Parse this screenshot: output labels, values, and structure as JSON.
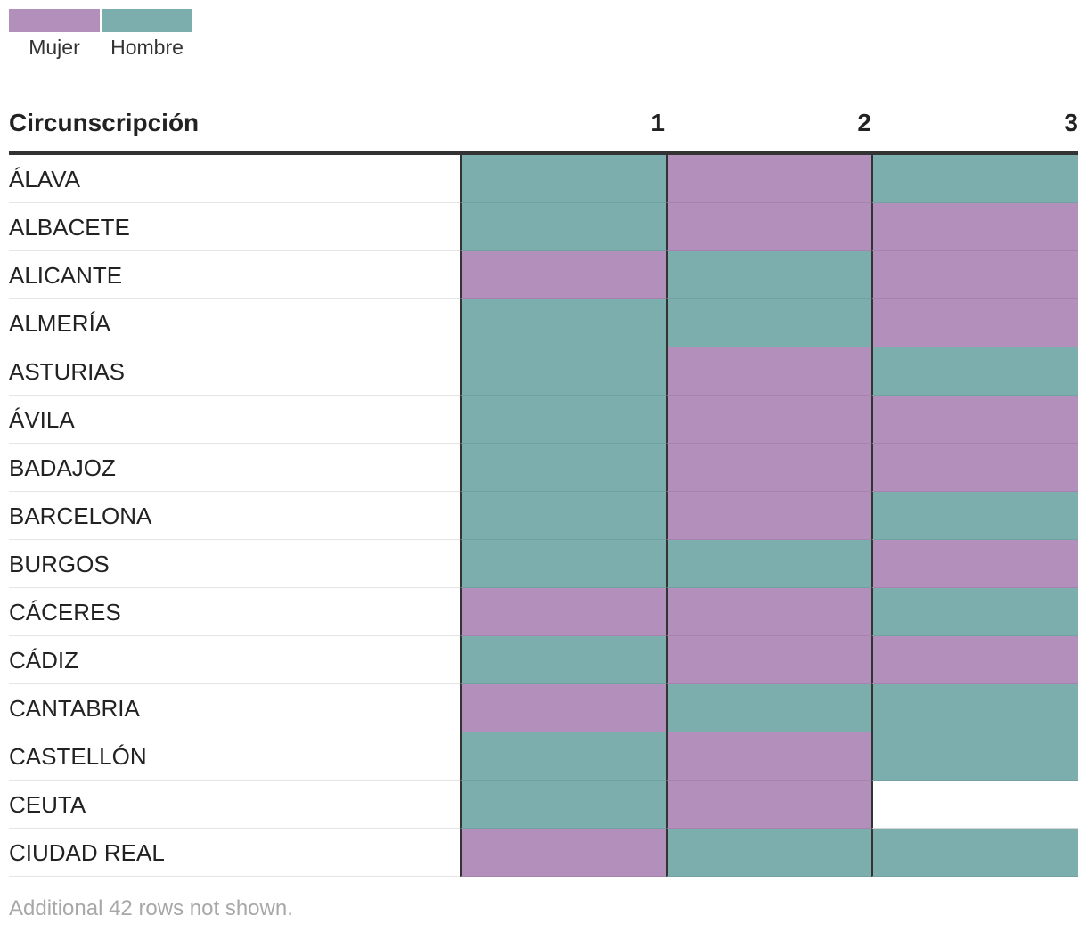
{
  "legend": [
    {
      "label": "Mujer",
      "color": "#b38fbb"
    },
    {
      "label": "Hombre",
      "color": "#7daeae"
    }
  ],
  "chart_data": {
    "type": "table",
    "header": "Circunscripción",
    "columns": [
      "1",
      "2",
      "3"
    ],
    "categories": {
      "Mujer": "#b38fbb",
      "Hombre": "#7daeae"
    },
    "rows": [
      {
        "name": "ÁLAVA",
        "values": [
          "Hombre",
          "Mujer",
          "Hombre"
        ]
      },
      {
        "name": "ALBACETE",
        "values": [
          "Hombre",
          "Mujer",
          "Mujer"
        ]
      },
      {
        "name": "ALICANTE",
        "values": [
          "Mujer",
          "Hombre",
          "Mujer"
        ]
      },
      {
        "name": "ALMERÍA",
        "values": [
          "Hombre",
          "Hombre",
          "Mujer"
        ]
      },
      {
        "name": "ASTURIAS",
        "values": [
          "Hombre",
          "Mujer",
          "Hombre"
        ]
      },
      {
        "name": "ÁVILA",
        "values": [
          "Hombre",
          "Mujer",
          "Mujer"
        ]
      },
      {
        "name": "BADAJOZ",
        "values": [
          "Hombre",
          "Mujer",
          "Mujer"
        ]
      },
      {
        "name": "BARCELONA",
        "values": [
          "Hombre",
          "Mujer",
          "Hombre"
        ]
      },
      {
        "name": "BURGOS",
        "values": [
          "Hombre",
          "Hombre",
          "Mujer"
        ]
      },
      {
        "name": "CÁCERES",
        "values": [
          "Mujer",
          "Mujer",
          "Hombre"
        ]
      },
      {
        "name": "CÁDIZ",
        "values": [
          "Hombre",
          "Mujer",
          "Mujer"
        ]
      },
      {
        "name": "CANTABRIA",
        "values": [
          "Mujer",
          "Hombre",
          "Hombre"
        ]
      },
      {
        "name": "CASTELLÓN",
        "values": [
          "Hombre",
          "Mujer",
          "Hombre"
        ]
      },
      {
        "name": "CEUTA",
        "values": [
          "Hombre",
          "Mujer",
          null
        ]
      },
      {
        "name": "CIUDAD REAL",
        "values": [
          "Mujer",
          "Hombre",
          "Hombre"
        ]
      }
    ]
  },
  "footnote": "Additional 42 rows not shown."
}
